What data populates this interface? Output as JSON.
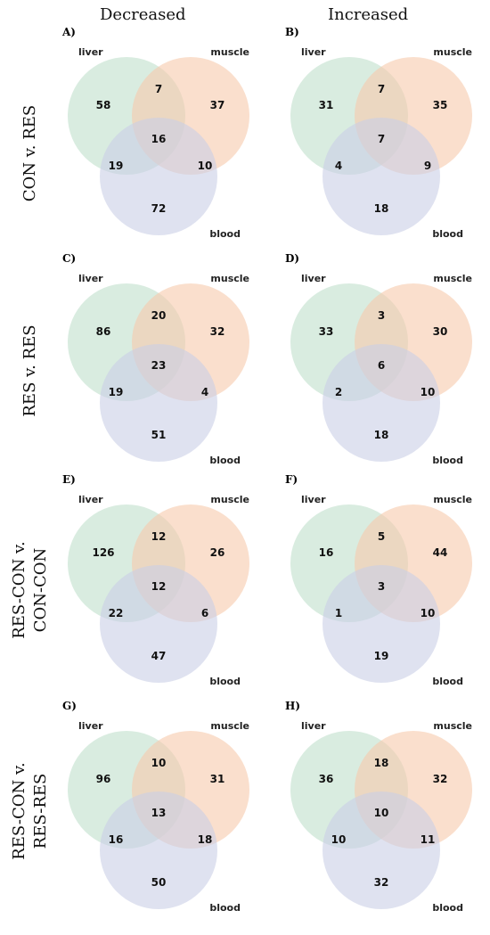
{
  "columns": {
    "decreased": "Decreased",
    "increased": "Increased"
  },
  "rows": [
    {
      "label_lines": [
        "CON v. RES"
      ]
    },
    {
      "label_lines": [
        "RES v. RES"
      ]
    },
    {
      "label_lines": [
        "RES-CON v.",
        "CON-CON"
      ]
    },
    {
      "label_lines": [
        "RES-CON v.",
        "RES-RES"
      ]
    }
  ],
  "set_names": {
    "liver": "liver",
    "muscle": "muscle",
    "blood": "blood"
  },
  "colors": {
    "liver": "#bfe0cc",
    "muscle": "#f7c9ab",
    "blood": "#c9cfe6"
  },
  "panels": [
    {
      "letter": "A)",
      "liver_only": "58",
      "liver_muscle": "7",
      "muscle_only": "37",
      "all": "16",
      "liver_blood": "19",
      "muscle_blood": "10",
      "blood_only": "72"
    },
    {
      "letter": "B)",
      "liver_only": "31",
      "liver_muscle": "7",
      "muscle_only": "35",
      "all": "7",
      "liver_blood": "4",
      "muscle_blood": "9",
      "blood_only": "18"
    },
    {
      "letter": "C)",
      "liver_only": "86",
      "liver_muscle": "20",
      "muscle_only": "32",
      "all": "23",
      "liver_blood": "19",
      "muscle_blood": "4",
      "blood_only": "51"
    },
    {
      "letter": "D)",
      "liver_only": "33",
      "liver_muscle": "3",
      "muscle_only": "30",
      "all": "6",
      "liver_blood": "2",
      "muscle_blood": "10",
      "blood_only": "18"
    },
    {
      "letter": "E)",
      "liver_only": "126",
      "liver_muscle": "12",
      "muscle_only": "26",
      "all": "12",
      "liver_blood": "22",
      "muscle_blood": "6",
      "blood_only": "47"
    },
    {
      "letter": "F)",
      "liver_only": "16",
      "liver_muscle": "5",
      "muscle_only": "44",
      "all": "3",
      "liver_blood": "1",
      "muscle_blood": "10",
      "blood_only": "19"
    },
    {
      "letter": "G)",
      "liver_only": "96",
      "liver_muscle": "10",
      "muscle_only": "31",
      "all": "13",
      "liver_blood": "16",
      "muscle_blood": "18",
      "blood_only": "50"
    },
    {
      "letter": "H)",
      "liver_only": "36",
      "liver_muscle": "18",
      "muscle_only": "32",
      "all": "10",
      "liver_blood": "10",
      "muscle_blood": "11",
      "blood_only": "32"
    }
  ]
}
